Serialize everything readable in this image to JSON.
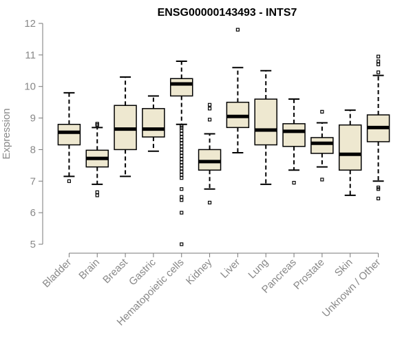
{
  "chart_data": {
    "type": "box",
    "title": "ENSG00000143493 - INTS7",
    "ylabel": "Expression",
    "xlabel": "",
    "ylim": [
      4.8,
      12.1
    ],
    "yticks": [
      5,
      6,
      7,
      8,
      9,
      10,
      11,
      12
    ],
    "box_fill": "#EEE8D0",
    "categories": [
      "Bladder",
      "Brain",
      "Breast",
      "Gastric",
      "Hematopoietic cells",
      "Kidney",
      "Liver",
      "Lung",
      "Pancreas",
      "Prostate",
      "Skin",
      "Unknown / Other"
    ],
    "boxes": [
      {
        "category": "Bladder",
        "whisker_low": 7.15,
        "q1": 8.15,
        "median": 8.55,
        "q3": 8.8,
        "whisker_high": 9.8,
        "outliers": [
          7.0
        ]
      },
      {
        "category": "Brain",
        "whisker_low": 6.9,
        "q1": 7.45,
        "median": 7.72,
        "q3": 7.98,
        "whisker_high": 8.7,
        "outliers": [
          8.78,
          8.82,
          6.65,
          6.55
        ]
      },
      {
        "category": "Breast",
        "whisker_low": 7.15,
        "q1": 8.0,
        "median": 8.65,
        "q3": 9.4,
        "whisker_high": 10.3,
        "outliers": []
      },
      {
        "category": "Gastric",
        "whisker_low": 7.95,
        "q1": 8.4,
        "median": 8.65,
        "q3": 9.3,
        "whisker_high": 9.7,
        "outliers": []
      },
      {
        "category": "Hematopoietic cells",
        "whisker_low": 8.8,
        "q1": 9.7,
        "median": 10.08,
        "q3": 10.25,
        "whisker_high": 10.8,
        "outliers": [
          8.75,
          8.7,
          8.6,
          8.5,
          8.4,
          8.3,
          8.2,
          8.1,
          8.0,
          7.9,
          7.8,
          7.7,
          7.6,
          7.5,
          7.4,
          7.3,
          7.2,
          7.1,
          6.75,
          6.5,
          6.4,
          6.0,
          5.0
        ]
      },
      {
        "category": "Kidney",
        "whisker_low": 6.75,
        "q1": 7.35,
        "median": 7.62,
        "q3": 8.0,
        "whisker_high": 8.5,
        "outliers": [
          9.42,
          9.3,
          8.95,
          6.32
        ]
      },
      {
        "category": "Liver",
        "whisker_low": 7.9,
        "q1": 8.7,
        "median": 9.05,
        "q3": 9.5,
        "whisker_high": 10.6,
        "outliers": [
          11.8
        ]
      },
      {
        "category": "Lung",
        "whisker_low": 6.9,
        "q1": 8.15,
        "median": 8.62,
        "q3": 9.6,
        "whisker_high": 10.5,
        "outliers": []
      },
      {
        "category": "Pancreas",
        "whisker_low": 7.35,
        "q1": 8.1,
        "median": 8.58,
        "q3": 8.82,
        "whisker_high": 9.6,
        "outliers": [
          6.95
        ]
      },
      {
        "category": "Prostate",
        "whisker_low": 7.45,
        "q1": 7.88,
        "median": 8.2,
        "q3": 8.38,
        "whisker_high": 8.85,
        "outliers": [
          9.2,
          7.05
        ]
      },
      {
        "category": "Skin",
        "whisker_low": 6.55,
        "q1": 7.35,
        "median": 7.85,
        "q3": 8.78,
        "whisker_high": 9.25,
        "outliers": []
      },
      {
        "category": "Unknown / Other",
        "whisker_low": 7.0,
        "q1": 8.25,
        "median": 8.7,
        "q3": 9.1,
        "whisker_high": 10.35,
        "outliers": [
          10.95,
          10.8,
          10.7,
          10.45,
          6.8,
          6.75,
          6.45
        ]
      }
    ]
  }
}
